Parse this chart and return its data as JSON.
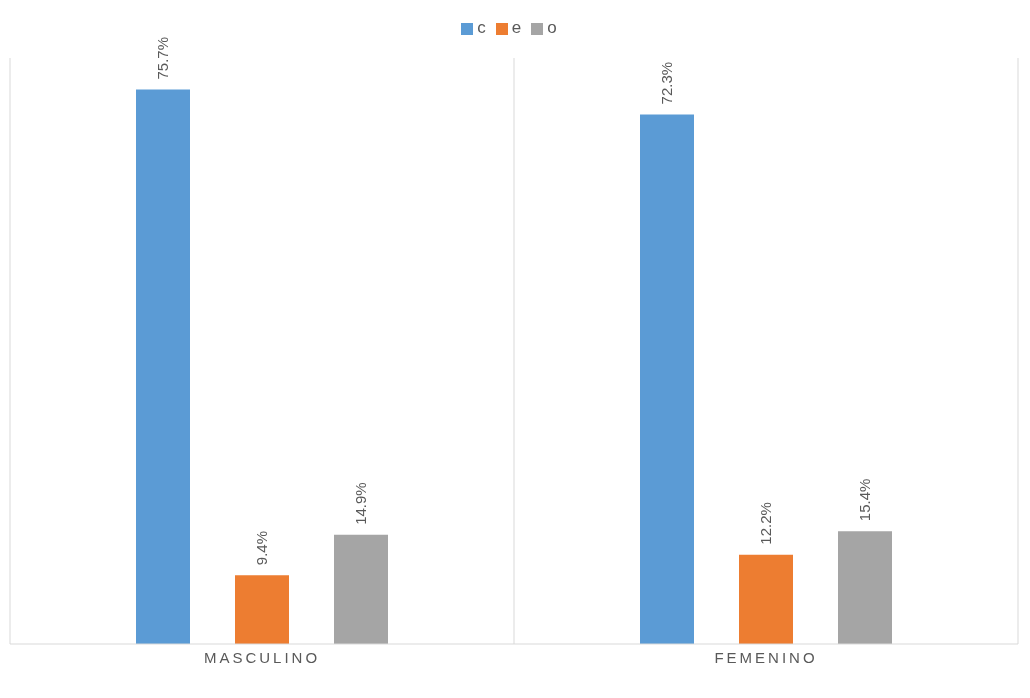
{
  "chart_data": {
    "type": "bar",
    "categories": [
      "MASCULINO",
      "FEMENINO"
    ],
    "series": [
      {
        "name": "c",
        "color": "#5b9bd5",
        "values": [
          75.7,
          72.3
        ],
        "value_labels": [
          "75.7%",
          "72.3%"
        ]
      },
      {
        "name": "e",
        "color": "#ed7d31",
        "values": [
          9.4,
          12.2
        ],
        "value_labels": [
          "9.4%",
          "12.2%"
        ]
      },
      {
        "name": "o",
        "color": "#a5a5a5",
        "values": [
          14.9,
          15.4
        ],
        "value_labels": [
          "14.9%",
          "15.4%"
        ]
      }
    ],
    "legend": "top",
    "grid": "x"
  }
}
